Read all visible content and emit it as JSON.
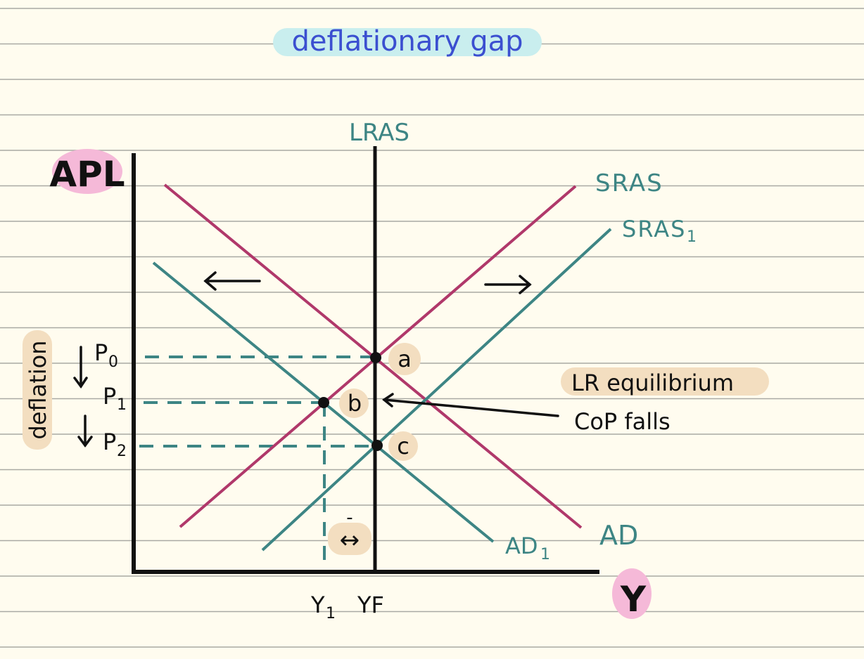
{
  "title": "deflationary gap",
  "axes": {
    "y_label": "APL",
    "x_label": "Y"
  },
  "curves": {
    "lras": "LRAS",
    "sras": "SRAS",
    "sras1": "SRAS",
    "sras1_subscript": "1",
    "ad": "AD",
    "ad1": "AD",
    "ad1_subscript": "1"
  },
  "price_levels": {
    "p0": "P",
    "p0_subscript": "0",
    "p1": "P",
    "p1_subscript": "1",
    "p2": "P",
    "p2_subscript": "2",
    "side_label": "deflation"
  },
  "output_levels": {
    "y1": "Y",
    "y1_subscript": "1",
    "yf": "YF"
  },
  "points": {
    "a": "a",
    "b": "b",
    "c": "c"
  },
  "annotations": {
    "lr_equilibrium": "LR equilibrium",
    "cop_falls": "CoP falls",
    "gap_marker": "-",
    "gap_arrow": "↔"
  },
  "colors": {
    "background": "#fffcef",
    "ruled_lines": "#a9a9a4",
    "sras_ad": "#b0386a",
    "teal": "#3d8584",
    "axis": "#111111",
    "title_ink": "#3b4fd0",
    "title_highlight": "#c9eeee",
    "pink_highlight": "#f5b9d8",
    "tan_highlight": "#f3dec0"
  }
}
